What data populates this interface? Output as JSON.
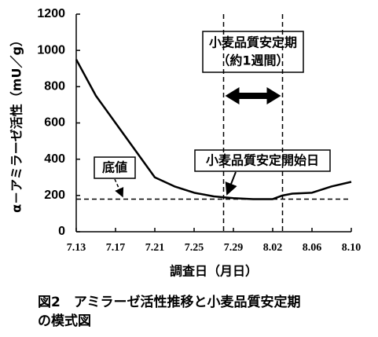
{
  "chart_data": {
    "type": "line",
    "caption": [
      "図2　アミラーゼ活性推移と小麦品質安定期",
      "の模式図"
    ],
    "x_label": "調査日（月日）",
    "y_label": "α－アミラーゼ活性（mU／g）",
    "x": [
      0,
      2,
      4,
      6,
      8,
      10,
      12,
      14,
      16,
      18,
      20,
      21,
      22,
      24,
      26,
      28
    ],
    "values": [
      950,
      750,
      600,
      450,
      300,
      250,
      215,
      195,
      185,
      180,
      180,
      200,
      210,
      215,
      250,
      275
    ],
    "color": "#000000",
    "xlim": [
      0,
      28
    ],
    "xticks": [
      {
        "value": 0,
        "label": "7.13"
      },
      {
        "value": 4,
        "label": "7.17"
      },
      {
        "value": 8,
        "label": "7.21"
      },
      {
        "value": 12,
        "label": "7.25"
      },
      {
        "value": 16,
        "label": "7.29"
      },
      {
        "value": 20,
        "label": "8.02"
      },
      {
        "value": 24,
        "label": "8.06"
      },
      {
        "value": 28,
        "label": "8.10"
      }
    ],
    "ylim": [
      0,
      1200
    ],
    "yticks": [
      0,
      200,
      400,
      600,
      800,
      1000,
      1200
    ],
    "hline": 180,
    "vlines": [
      15,
      21
    ],
    "annotations": {
      "period": [
        "小麦品質安定期",
        "（約1週間）"
      ],
      "start": "小麦品質安定開始日",
      "bottom": "底値"
    }
  }
}
